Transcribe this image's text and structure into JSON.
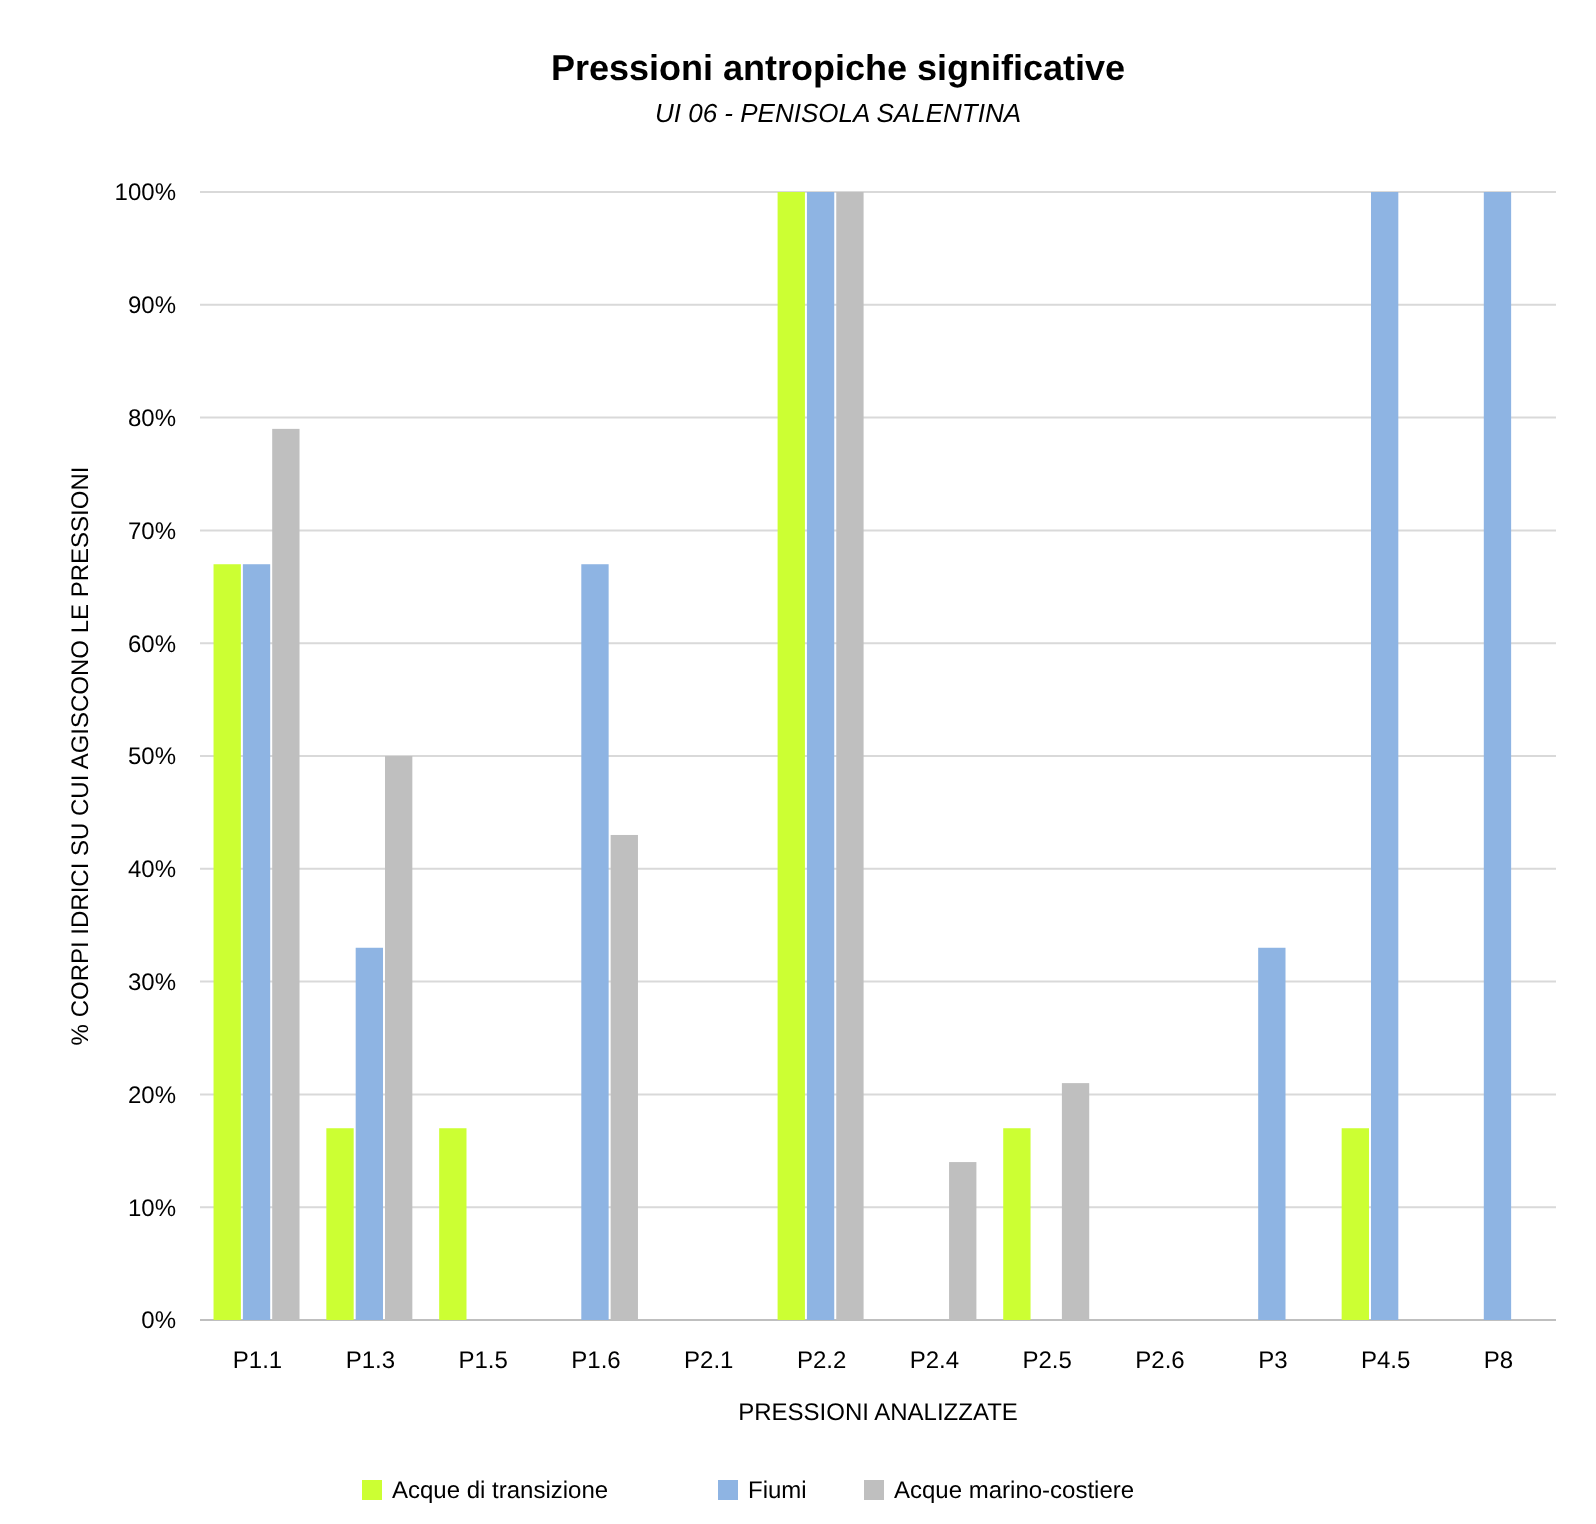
{
  "chart_data": {
    "type": "bar",
    "title": "Pressioni antropiche significative",
    "subtitle": "UI 06 - PENISOLA SALENTINA",
    "xlabel": "PRESSIONI ANALIZZATE",
    "ylabel": "% CORPI IDRICI SU CUI AGISCONO LE PRESSIONI",
    "categories": [
      "P1.1",
      "P1.3",
      "P1.5",
      "P1.6",
      "P2.1",
      "P2.2",
      "P2.4",
      "P2.5",
      "P2.6",
      "P3",
      "P4.5",
      "P8"
    ],
    "series": [
      {
        "name": "Acque di transizione",
        "color": "#ccff33",
        "values": [
          67,
          17,
          17,
          0,
          0,
          100,
          0,
          17,
          0,
          0,
          17,
          0
        ]
      },
      {
        "name": "Fiumi",
        "color": "#8eb4e3",
        "values": [
          67,
          33,
          0,
          67,
          0,
          100,
          0,
          0,
          0,
          33,
          100,
          100
        ]
      },
      {
        "name": "Acque marino-costiere",
        "color": "#bfbfbf",
        "values": [
          79,
          50,
          0,
          43,
          0,
          100,
          14,
          21,
          0,
          0,
          0,
          0
        ]
      }
    ],
    "ylim": [
      0,
      100
    ],
    "yticks": [
      {
        "value": 0,
        "label": "0%"
      },
      {
        "value": 10,
        "label": "10%"
      },
      {
        "value": 20,
        "label": "20%"
      },
      {
        "value": 30,
        "label": "30%"
      },
      {
        "value": 40,
        "label": "40%"
      },
      {
        "value": 50,
        "label": "50%"
      },
      {
        "value": 60,
        "label": "60%"
      },
      {
        "value": 70,
        "label": "70%"
      },
      {
        "value": 80,
        "label": "80%"
      },
      {
        "value": 90,
        "label": "90%"
      },
      {
        "value": 100,
        "label": "100%"
      }
    ],
    "grid": "y",
    "legend": "bottom"
  }
}
